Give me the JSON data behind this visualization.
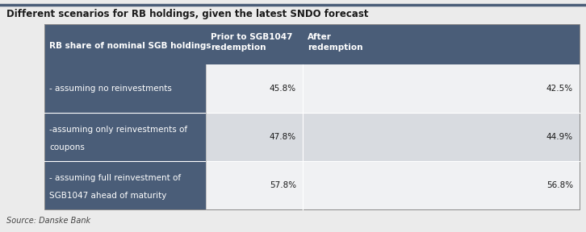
{
  "title": "Different scenarios for RB holdings, given the latest SNDO forecast",
  "source": "Source: Danske Bank",
  "header_bg": "#4a5d78",
  "header_text_color": "#ffffff",
  "data_bg_odd": "#f0f1f3",
  "data_bg_even": "#d8dbe0",
  "outer_bg": "#ebebeb",
  "title_line_color": "#5a7a9a",
  "col0_header": "RB share of nominal SGB holdings",
  "col1_header": "Prior to SGB1047\nredemption",
  "col2_header": "After\nredemption",
  "rows": [
    {
      "label": "- assuming no reinvestments",
      "label_line2": "",
      "col1": "45.8%",
      "col2": "42.5%"
    },
    {
      "label": "-assuming only reinvestments of",
      "label_line2": "coupons",
      "col1": "47.8%",
      "col2": "44.9%"
    },
    {
      "label": "- assuming full reinvestment of",
      "label_line2": "SGB1047 ahead of maturity",
      "col1": "57.8%",
      "col2": "56.8%"
    }
  ],
  "title_fontsize": 8.5,
  "header_fontsize": 7.5,
  "cell_fontsize": 7.5,
  "source_fontsize": 7.0,
  "fig_width": 7.26,
  "fig_height": 2.88,
  "dpi": 100
}
